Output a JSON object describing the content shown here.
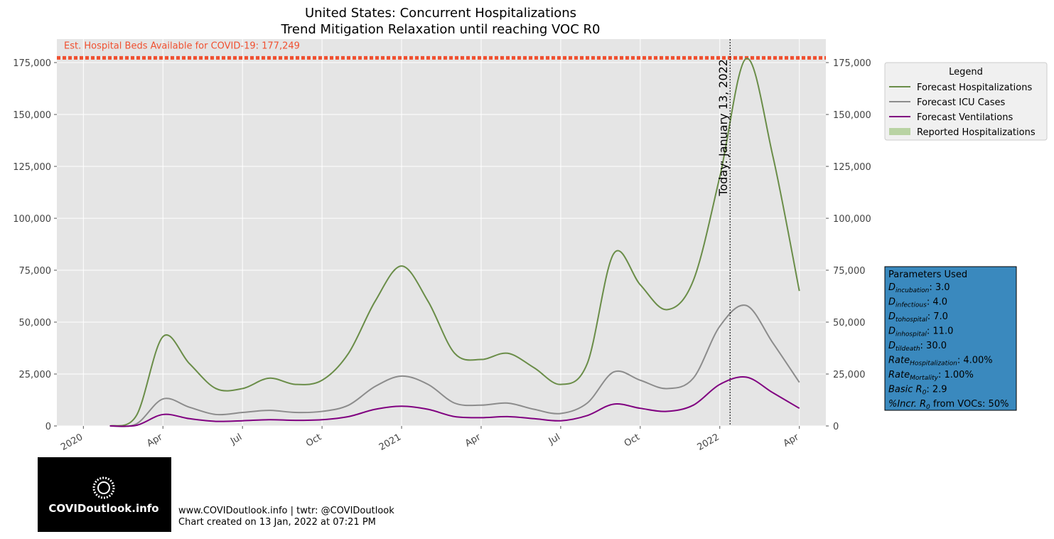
{
  "chart_data": {
    "type": "line",
    "title": "United States: Concurrent Hospitalizations",
    "subtitle": "Trend Mitigation Relaxation until reaching VOC R0",
    "x": [
      "2020-02",
      "2020-03",
      "2020-04",
      "2020-05",
      "2020-06",
      "2020-07",
      "2020-08",
      "2020-09",
      "2020-10",
      "2020-11",
      "2020-12",
      "2021-01",
      "2021-02",
      "2021-03",
      "2021-04",
      "2021-05",
      "2021-06",
      "2021-07",
      "2021-08",
      "2021-09",
      "2021-10",
      "2021-11",
      "2021-12",
      "2022-01",
      "2022-02",
      "2022-03",
      "2022-04"
    ],
    "series": [
      {
        "name": "Forecast Hospitalizations",
        "color": "#6a8d48",
        "values": [
          0,
          5000,
          43000,
          30000,
          18000,
          18000,
          23000,
          20000,
          22000,
          35000,
          60000,
          77000,
          60000,
          35000,
          32000,
          35000,
          28000,
          20000,
          30000,
          83000,
          68000,
          56000,
          70000,
          120000,
          177000,
          130000,
          65000
        ]
      },
      {
        "name": "Forecast ICU Cases",
        "color": "#8c8c8c",
        "values": [
          0,
          1000,
          13000,
          9000,
          5500,
          6500,
          7500,
          6500,
          7000,
          10000,
          19000,
          24000,
          20000,
          11000,
          10000,
          11000,
          8000,
          6000,
          11000,
          26000,
          22000,
          18000,
          23000,
          48000,
          58000,
          40000,
          21000
        ]
      },
      {
        "name": "Forecast Ventilations",
        "color": "#800080",
        "values": [
          0,
          300,
          5500,
          3500,
          2200,
          2500,
          3000,
          2700,
          3000,
          4500,
          8000,
          9500,
          8000,
          4500,
          4000,
          4500,
          3500,
          2500,
          5000,
          10500,
          8500,
          7000,
          10000,
          20000,
          23500,
          16000,
          8500
        ]
      }
    ],
    "reported_series": {
      "name": "Reported Hospitalizations",
      "color": "#b9d3a3"
    },
    "legend_title": "Legend",
    "legend": "upper right outside",
    "xlim": [
      "2019-12",
      "2022-05"
    ],
    "xticks": [
      {
        "value": "2020-01",
        "label": "2020"
      },
      {
        "value": "2020-04",
        "label": "Apr"
      },
      {
        "value": "2020-07",
        "label": "Jul"
      },
      {
        "value": "2020-10",
        "label": "Oct"
      },
      {
        "value": "2021-01",
        "label": "2021"
      },
      {
        "value": "2021-04",
        "label": "Apr"
      },
      {
        "value": "2021-07",
        "label": "Jul"
      },
      {
        "value": "2021-10",
        "label": "Oct"
      },
      {
        "value": "2022-01",
        "label": "2022"
      },
      {
        "value": "2022-04",
        "label": "Apr"
      }
    ],
    "ylim": [
      0,
      186300
    ],
    "yticks": [
      0,
      {
        "value": 25000,
        "label": "25,000"
      },
      {
        "value": 50000,
        "label": "50,000"
      },
      {
        "value": 75000,
        "label": "75,000"
      },
      {
        "value": 100000,
        "label": "100,000"
      },
      {
        "value": 125000,
        "label": "125,000"
      },
      {
        "value": 150000,
        "label": "150,000"
      },
      {
        "value": 175000,
        "label": "175,000"
      }
    ],
    "grid": true,
    "beds": {
      "value": 177249,
      "label": "Est. Hospital Beds Available for COVID-19: 177,249",
      "color": "#f05030"
    },
    "today": {
      "value": "2022-01-13",
      "label": "Today: January 13, 2022"
    },
    "parameters": {
      "title": "Parameters Used",
      "items": [
        {
          "main": "D",
          "sub": "incubation",
          "rest": ": 3.0"
        },
        {
          "main": "D",
          "sub": "infectious",
          "rest": ": 4.0"
        },
        {
          "main": "D",
          "sub": "tohospital",
          "rest": ": 7.0"
        },
        {
          "main": "D",
          "sub": "inhospital",
          "rest": ": 11.0"
        },
        {
          "main": "D",
          "sub": "tildeath",
          "rest": ": 30.0"
        },
        {
          "main": "Rate",
          "sub": "Hospitalization",
          "rest": ": 4.00%"
        },
        {
          "main": "Rate",
          "sub": "Mortality",
          "rest": ": 1.00%"
        },
        {
          "main": "Basic R",
          "sub": "0",
          "rest": ": 2.9"
        },
        {
          "main": "%Incr. R",
          "sub": "0",
          "rest": " from VOCs: 50%"
        }
      ]
    },
    "logo": "COVIDoutlook.info",
    "footer": [
      "www.COVIDoutlook.info | twtr: @COVIDoutlook",
      "Chart created on 13 Jan, 2022 at 07:21 PM"
    ]
  }
}
